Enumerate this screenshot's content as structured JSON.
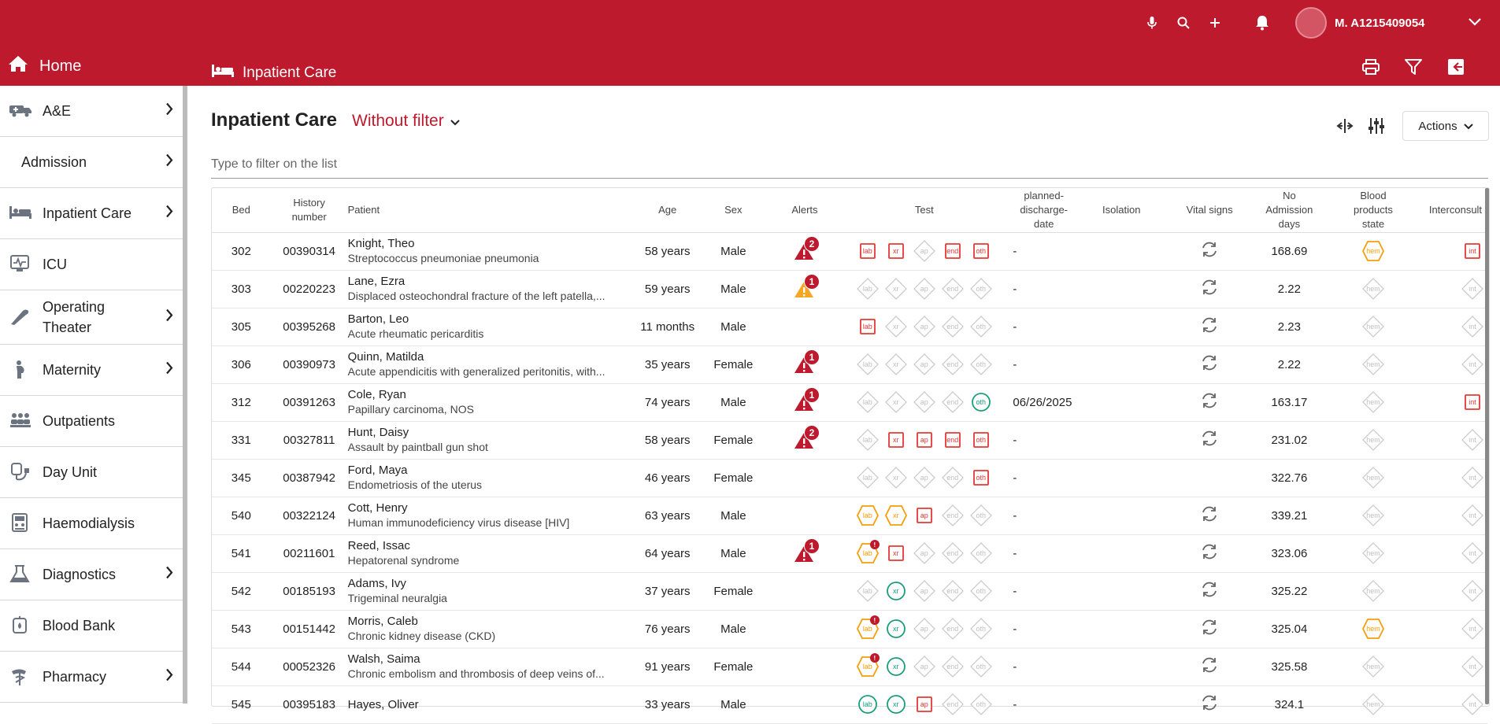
{
  "header": {
    "user_name": "M. A1215409054",
    "home_label": "Home",
    "section_label": "Inpatient Care"
  },
  "sidebar": {
    "items": [
      {
        "label": "A&E",
        "icon": "ambulance-icon",
        "chevron": true
      },
      {
        "label": "Admission",
        "icon": "",
        "chevron": true
      },
      {
        "label": "Inpatient Care",
        "icon": "bed-icon",
        "chevron": true
      },
      {
        "label": "ICU",
        "icon": "monitor-icon",
        "chevron": false
      },
      {
        "label": "Operating Theater",
        "icon": "scalpel-icon",
        "chevron": true
      },
      {
        "label": "Maternity",
        "icon": "pregnant-icon",
        "chevron": true
      },
      {
        "label": "Outpatients",
        "icon": "waiting-room-icon",
        "chevron": false
      },
      {
        "label": "Day Unit",
        "icon": "iv-drip-icon",
        "chevron": false
      },
      {
        "label": "Haemodialysis",
        "icon": "dialysis-machine-icon",
        "chevron": false
      },
      {
        "label": "Diagnostics",
        "icon": "flask-icon",
        "chevron": true
      },
      {
        "label": "Blood Bank",
        "icon": "blood-bag-icon",
        "chevron": false
      },
      {
        "label": "Pharmacy",
        "icon": "pharmacy-icon",
        "chevron": true
      }
    ]
  },
  "main": {
    "title": "Inpatient Care",
    "filter_label": "Without filter",
    "actions_label": "Actions",
    "search_placeholder": "Type to filter on the list"
  },
  "table": {
    "columns": [
      "Bed",
      "History number",
      "Patient",
      "Age",
      "Sex",
      "Alerts",
      "Test",
      "planned-discharge-date",
      "Isolation",
      "Vital signs",
      "No Admission days",
      "Blood products state",
      "Interconsult"
    ],
    "test_labels": [
      "lab",
      "xr",
      "ap",
      "end",
      "oth"
    ],
    "rows": [
      {
        "bed": "302",
        "history": "00390314",
        "name": "Knight, Theo",
        "diag": "Streptococcus pneumoniae pneumonia",
        "age": "58 years",
        "sex": "Male",
        "alert": "2",
        "alert_color": "red",
        "tests": [
          [
            "red-sq"
          ],
          [
            "red-sq"
          ],
          [
            "grey"
          ],
          [
            "red-sq"
          ],
          [
            "red-sq"
          ]
        ],
        "discharge": "-",
        "vitals": true,
        "days": "168.69",
        "blood": "orange",
        "inter": "red"
      },
      {
        "bed": "303",
        "history": "00220223",
        "name": "Lane, Ezra",
        "diag": "Displaced osteochondral fracture of the left patella,...",
        "age": "59 years",
        "sex": "Male",
        "alert": "1",
        "alert_color": "orange",
        "tests": [
          [
            "grey"
          ],
          [
            "grey"
          ],
          [
            "grey"
          ],
          [
            "grey"
          ],
          [
            "grey"
          ]
        ],
        "discharge": "-",
        "vitals": true,
        "days": "2.22",
        "blood": "grey",
        "inter": "grey"
      },
      {
        "bed": "305",
        "history": "00395268",
        "name": "Barton, Leo",
        "diag": "Acute rheumatic pericarditis",
        "age": "11 months",
        "sex": "Male",
        "alert": "",
        "alert_color": "",
        "tests": [
          [
            "red-sq"
          ],
          [
            "grey"
          ],
          [
            "grey"
          ],
          [
            "grey"
          ],
          [
            "grey"
          ]
        ],
        "discharge": "-",
        "vitals": true,
        "days": "2.23",
        "blood": "grey",
        "inter": "grey"
      },
      {
        "bed": "306",
        "history": "00390973",
        "name": "Quinn, Matilda",
        "diag": "Acute appendicitis with generalized peritonitis, with...",
        "age": "35 years",
        "sex": "Female",
        "alert": "1",
        "alert_color": "red",
        "tests": [
          [
            "grey"
          ],
          [
            "grey"
          ],
          [
            "grey"
          ],
          [
            "grey"
          ],
          [
            "grey"
          ]
        ],
        "discharge": "-",
        "vitals": true,
        "days": "2.22",
        "blood": "grey",
        "inter": "grey"
      },
      {
        "bed": "312",
        "history": "00391263",
        "name": "Cole, Ryan",
        "diag": "Papillary carcinoma, NOS",
        "age": "74 years",
        "sex": "Male",
        "alert": "1",
        "alert_color": "red",
        "tests": [
          [
            "grey"
          ],
          [
            "grey"
          ],
          [
            "grey"
          ],
          [
            "grey"
          ],
          [
            "green"
          ]
        ],
        "discharge": "06/26/2025",
        "vitals": true,
        "days": "163.17",
        "blood": "grey",
        "inter": "red"
      },
      {
        "bed": "331",
        "history": "00327811",
        "name": "Hunt, Daisy",
        "diag": "Assault by paintball gun shot",
        "age": "58 years",
        "sex": "Female",
        "alert": "2",
        "alert_color": "red",
        "tests": [
          [
            "grey"
          ],
          [
            "red-sq"
          ],
          [
            "red-sq"
          ],
          [
            "red-sq"
          ],
          [
            "red-sq"
          ]
        ],
        "discharge": "-",
        "vitals": true,
        "days": "231.02",
        "blood": "grey",
        "inter": "grey"
      },
      {
        "bed": "345",
        "history": "00387942",
        "name": "Ford, Maya",
        "diag": "Endometriosis of the uterus",
        "age": "46 years",
        "sex": "Female",
        "alert": "",
        "alert_color": "",
        "tests": [
          [
            "grey"
          ],
          [
            "grey"
          ],
          [
            "grey"
          ],
          [
            "grey"
          ],
          [
            "red-sq"
          ]
        ],
        "discharge": "-",
        "vitals": false,
        "days": "322.76",
        "blood": "grey",
        "inter": "grey"
      },
      {
        "bed": "540",
        "history": "00322124",
        "name": "Cott, Henry",
        "diag": "Human immunodeficiency virus disease [HIV]",
        "age": "63 years",
        "sex": "Male",
        "alert": "",
        "alert_color": "",
        "tests": [
          [
            "orange"
          ],
          [
            "orange"
          ],
          [
            "red-sq"
          ],
          [
            "grey"
          ],
          [
            "grey"
          ]
        ],
        "discharge": "-",
        "vitals": true,
        "days": "339.21",
        "blood": "grey",
        "inter": "grey"
      },
      {
        "bed": "541",
        "history": "00211601",
        "name": "Reed, Issac",
        "diag": "Hepatorenal syndrome",
        "age": "64 years",
        "sex": "Male",
        "alert": "1",
        "alert_color": "red",
        "tests": [
          [
            "orange",
            "mini"
          ],
          [
            "red-sq"
          ],
          [
            "grey"
          ],
          [
            "grey"
          ],
          [
            "grey"
          ]
        ],
        "discharge": "-",
        "vitals": true,
        "days": "323.06",
        "blood": "grey",
        "inter": "grey"
      },
      {
        "bed": "542",
        "history": "00185193",
        "name": "Adams, Ivy",
        "diag": "Trigeminal neuralgia",
        "age": "37 years",
        "sex": "Female",
        "alert": "",
        "alert_color": "",
        "tests": [
          [
            "grey"
          ],
          [
            "green"
          ],
          [
            "grey"
          ],
          [
            "grey"
          ],
          [
            "grey"
          ]
        ],
        "discharge": "-",
        "vitals": true,
        "days": "325.22",
        "blood": "grey",
        "inter": "grey"
      },
      {
        "bed": "543",
        "history": "00151442",
        "name": "Morris, Caleb",
        "diag": "Chronic kidney disease (CKD)",
        "age": "76 years",
        "sex": "Male",
        "alert": "",
        "alert_color": "",
        "tests": [
          [
            "orange",
            "mini"
          ],
          [
            "green"
          ],
          [
            "grey"
          ],
          [
            "grey"
          ],
          [
            "grey"
          ]
        ],
        "discharge": "-",
        "vitals": true,
        "days": "325.04",
        "blood": "orange",
        "inter": "grey"
      },
      {
        "bed": "544",
        "history": "00052326",
        "name": "Walsh, Saima",
        "diag": "Chronic embolism and thrombosis of deep veins of...",
        "age": "91 years",
        "sex": "Female",
        "alert": "",
        "alert_color": "",
        "tests": [
          [
            "orange",
            "mini"
          ],
          [
            "green"
          ],
          [
            "grey"
          ],
          [
            "grey"
          ],
          [
            "grey"
          ]
        ],
        "discharge": "-",
        "vitals": true,
        "days": "325.58",
        "blood": "grey",
        "inter": "grey"
      },
      {
        "bed": "545",
        "history": "00395183",
        "name": "Hayes, Oliver",
        "diag": "",
        "age": "33 years",
        "sex": "Male",
        "alert": "",
        "alert_color": "",
        "tests": [
          [
            "green"
          ],
          [
            "green"
          ],
          [
            "red-sq"
          ],
          [
            "grey"
          ],
          [
            "grey"
          ]
        ],
        "discharge": "-",
        "vitals": true,
        "days": "324.1",
        "blood": "grey",
        "inter": "grey"
      }
    ]
  },
  "colors": {
    "brand": "#bd1a2e",
    "alert_orange": "#f5a623",
    "test_red": "#e53935",
    "test_orange": "#f59e0b",
    "test_green": "#1a9e7a",
    "grey": "#c8c8c8"
  }
}
